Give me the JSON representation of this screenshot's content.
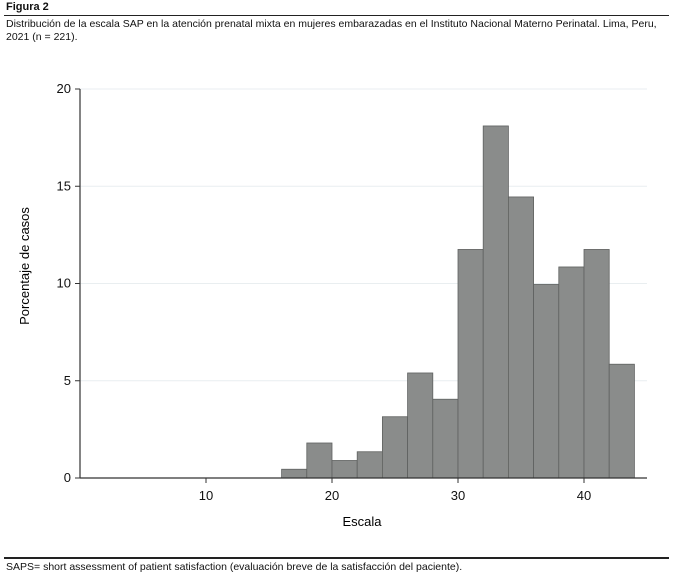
{
  "figure_label": "Figura 2",
  "caption": "Distribución de la escala SAP en la atención prenatal mixta en mujeres embarazadas en el Instituto Nacional Materno Perinatal. Lima, Peru, 2021 (n = 221).",
  "footnote": "SAPS= short assessment of patient satisfaction (evaluación breve de la satisfacción del paciente).",
  "colors": {
    "bar": "#8a8c8b",
    "bar_edge": "#5f6160",
    "grid": "#e9eef0",
    "axis": "#333333"
  },
  "chart_data": {
    "type": "bar",
    "title": "",
    "xlabel": "Escala",
    "ylabel": "Porcentaje de casos",
    "xlim": [
      0,
      45
    ],
    "ylim": [
      0,
      20
    ],
    "xticks": [
      10,
      20,
      30,
      40
    ],
    "yticks": [
      0,
      5,
      10,
      15,
      20
    ],
    "grid": true,
    "bin_width": 2,
    "bins": [
      {
        "start": 16,
        "end": 18,
        "value": 0.45
      },
      {
        "start": 18,
        "end": 20,
        "value": 1.8
      },
      {
        "start": 20,
        "end": 22,
        "value": 0.9
      },
      {
        "start": 22,
        "end": 24,
        "value": 1.35
      },
      {
        "start": 24,
        "end": 26,
        "value": 3.15
      },
      {
        "start": 26,
        "end": 28,
        "value": 5.4
      },
      {
        "start": 28,
        "end": 30,
        "value": 4.05
      },
      {
        "start": 30,
        "end": 32,
        "value": 11.75
      },
      {
        "start": 32,
        "end": 34,
        "value": 18.1
      },
      {
        "start": 34,
        "end": 36,
        "value": 14.45
      },
      {
        "start": 36,
        "end": 38,
        "value": 9.95
      },
      {
        "start": 38,
        "end": 40,
        "value": 10.85
      },
      {
        "start": 40,
        "end": 42,
        "value": 11.75
      },
      {
        "start": 42,
        "end": 44,
        "value": 5.85
      }
    ]
  }
}
